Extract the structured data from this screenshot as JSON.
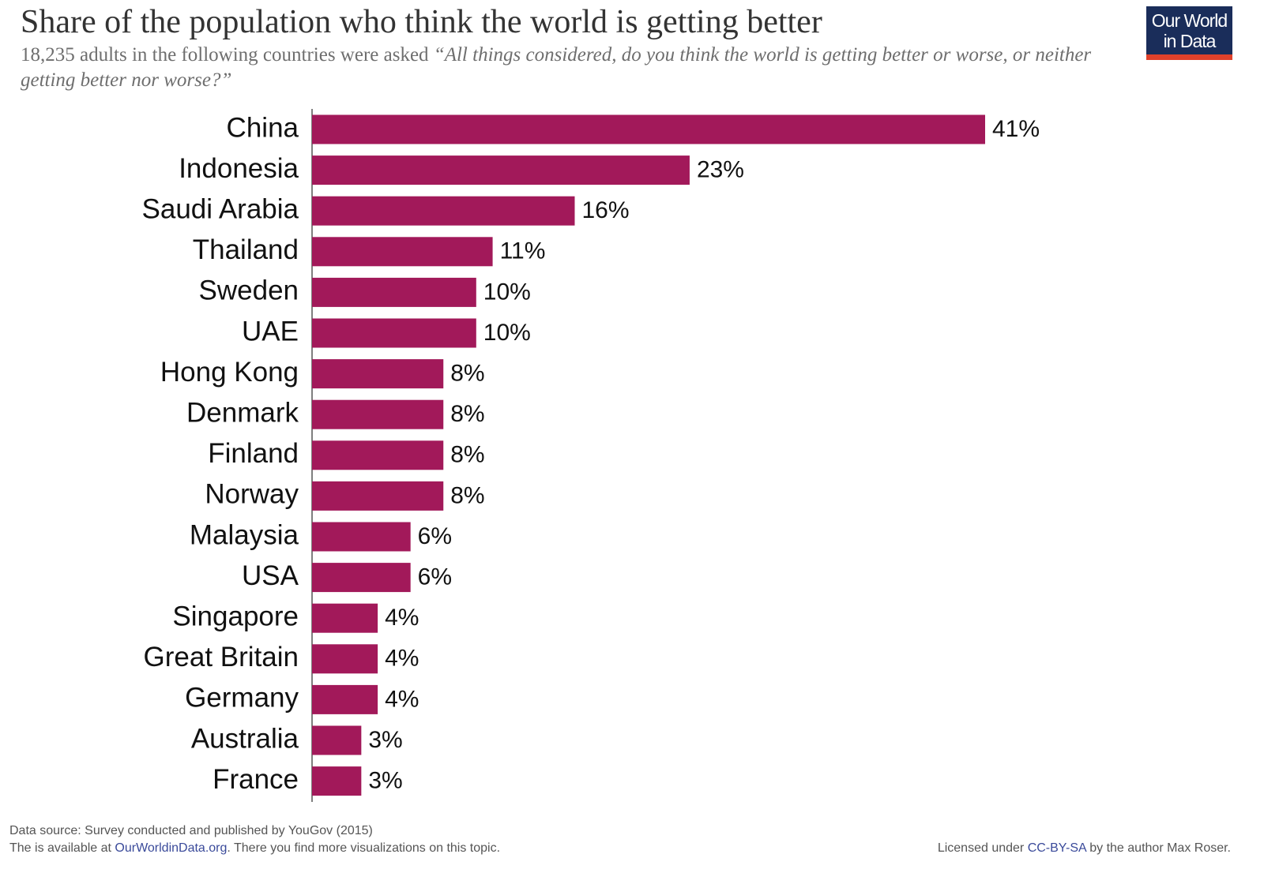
{
  "chart_data": {
    "type": "bar",
    "orientation": "horizontal",
    "title": "Share of the population who think the world is getting better",
    "subtitle": "18,235 adults in the following countries were asked",
    "question": "“All things considered, do you think the world is getting better or worse, or neither getting better nor worse?”",
    "categories": [
      "China",
      "Indonesia",
      "Saudi Arabia",
      "Thailand",
      "Sweden",
      "UAE",
      "Hong Kong",
      "Denmark",
      "Finland",
      "Norway",
      "Malaysia",
      "USA",
      "Singapore",
      "Great Britain",
      "Germany",
      "Australia",
      "France"
    ],
    "values": [
      41,
      23,
      16,
      11,
      10,
      10,
      8,
      8,
      8,
      8,
      6,
      6,
      4,
      4,
      4,
      3,
      3
    ],
    "value_labels": [
      "41%",
      "23%",
      "16%",
      "11%",
      "10%",
      "10%",
      "8%",
      "8%",
      "8%",
      "8%",
      "6%",
      "6%",
      "4%",
      "4%",
      "4%",
      "3%",
      "3%"
    ],
    "color": "#a2195a",
    "source": "Data source: Survey conducted and published by YouGov (2015)",
    "availability": [
      "The is available at ",
      "OurWorldinData.org",
      ". There you find more visualizations on this topic."
    ],
    "license": [
      "Licensed under ",
      "CC-BY-SA",
      " by the author Max Roser."
    ],
    "logo": [
      "Our World",
      "in Data"
    ]
  }
}
